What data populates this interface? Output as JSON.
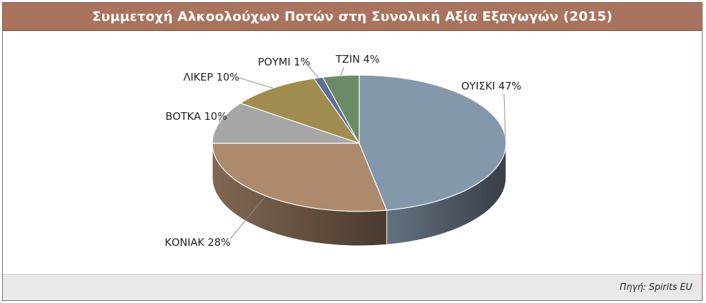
{
  "title": "Συμμετοχή Αλκοολούχων Ποτών στη Συνολική Αξία Εξαγωγών (2015)",
  "source": "Πηγή: Spirits EU",
  "chart_data": {
    "type": "pie",
    "title": "Συμμετοχή Αλκοολούχων Ποτών στη Συνολική Αξία Εξαγωγών (2015)",
    "style": "3d",
    "slices": [
      {
        "label": "ΟΥΙΣΚΙ",
        "value": 47,
        "display": "ΟΥΙΣΚΙ 47%",
        "color": "#8597ab"
      },
      {
        "label": "ΚΟΝΙΑΚ",
        "value": 28,
        "display": "ΚΟΝΙΑΚ 28%",
        "color": "#ad896d"
      },
      {
        "label": "ΒΟΤΚΑ",
        "value": 10,
        "display": "ΒΟΤΚΑ 10%",
        "color": "#a6a6a6"
      },
      {
        "label": "ΛΙΚΕΡ",
        "value": 10,
        "display": "ΛΙΚΕΡ 10%",
        "color": "#a08c4e"
      },
      {
        "label": "ΡΟΥΜΙ",
        "value": 1,
        "display": "ΡΟΥΜΙ 1%",
        "color": "#5b6f98"
      },
      {
        "label": "ΤΖΙΝ",
        "value": 4,
        "display": "ΤΖΙΝ 4%",
        "color": "#6d8a66"
      }
    ]
  }
}
